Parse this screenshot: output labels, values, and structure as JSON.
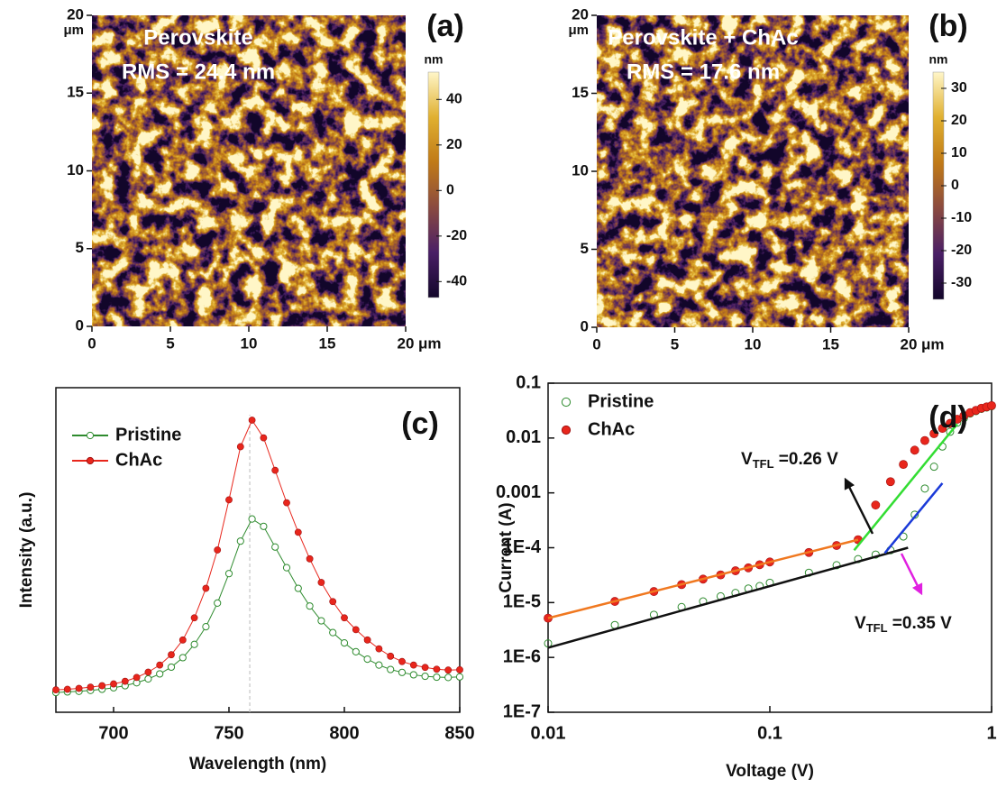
{
  "chart_data": [
    {
      "type": "afm_image",
      "label": "(a)",
      "title": "Perovskite",
      "subtitle": "RMS = 24.4 nm",
      "xlim": [
        0,
        20
      ],
      "ylim": [
        0,
        20
      ],
      "xticks": [
        0,
        5,
        10,
        15,
        20
      ],
      "yticks": [
        0,
        5,
        10,
        15,
        20
      ],
      "unit": "μm",
      "colorbar_label": "nm",
      "zlim": [
        -47,
        52
      ],
      "zticks": [
        -40,
        -20,
        0,
        20,
        40
      ],
      "colors": [
        "#12062a",
        "#4a1f66",
        "#8a4a40",
        "#c07a18",
        "#e0b030",
        "#fff6c8"
      ]
    },
    {
      "type": "afm_image",
      "label": "(b)",
      "title": "Perovskite + ChAc",
      "subtitle": "RMS = 17.6 nm",
      "xlim": [
        0,
        20
      ],
      "ylim": [
        0,
        20
      ],
      "xticks": [
        0,
        5,
        10,
        15,
        20
      ],
      "yticks": [
        0,
        5,
        10,
        15,
        20
      ],
      "unit": "μm",
      "colorbar_label": "nm",
      "zlim": [
        -35,
        35
      ],
      "zticks": [
        -30,
        -20,
        -10,
        0,
        10,
        20,
        30
      ],
      "colors": [
        "#12062a",
        "#4a1f66",
        "#8a4a40",
        "#c07a18",
        "#e0b030",
        "#fff6c8"
      ]
    },
    {
      "type": "line",
      "label": "(c)",
      "xlabel": "Wavelength (nm)",
      "ylabel": "Intensity (a.u.)",
      "xlim": [
        675,
        850
      ],
      "ylim": [
        0,
        1.1
      ],
      "xticks": [
        700,
        750,
        800,
        850
      ],
      "legend": "upper left",
      "reference_line_x": 759,
      "x": [
        675,
        680,
        685,
        690,
        695,
        700,
        705,
        710,
        715,
        720,
        725,
        730,
        735,
        740,
        745,
        750,
        755,
        760,
        765,
        770,
        775,
        780,
        785,
        790,
        795,
        800,
        805,
        810,
        815,
        820,
        825,
        830,
        835,
        840,
        845,
        850
      ],
      "series": [
        {
          "name": "Pristine",
          "color": "#2e8b2e",
          "marker": "open",
          "values": [
            0.067,
            0.069,
            0.071,
            0.074,
            0.078,
            0.083,
            0.09,
            0.1,
            0.113,
            0.13,
            0.153,
            0.185,
            0.23,
            0.29,
            0.37,
            0.47,
            0.58,
            0.655,
            0.63,
            0.56,
            0.49,
            0.42,
            0.36,
            0.31,
            0.27,
            0.235,
            0.205,
            0.18,
            0.16,
            0.145,
            0.135,
            0.127,
            0.122,
            0.119,
            0.118,
            0.12
          ]
        },
        {
          "name": "ChAc",
          "color": "#e8261c",
          "marker": "filled",
          "values": [
            0.076,
            0.078,
            0.081,
            0.085,
            0.09,
            0.096,
            0.105,
            0.118,
            0.136,
            0.16,
            0.195,
            0.245,
            0.32,
            0.42,
            0.55,
            0.72,
            0.9,
            0.99,
            0.93,
            0.82,
            0.71,
            0.61,
            0.52,
            0.44,
            0.375,
            0.32,
            0.28,
            0.245,
            0.215,
            0.19,
            0.172,
            0.16,
            0.152,
            0.146,
            0.143,
            0.144
          ]
        }
      ]
    },
    {
      "type": "loglog",
      "label": "(d)",
      "xlabel": "Voltage (V)",
      "ylabel": "Current (A)",
      "xlim": [
        0.01,
        1
      ],
      "ylim": [
        1e-07,
        0.1
      ],
      "xticks": [
        0.01,
        0.1,
        1
      ],
      "yticks": [
        {
          "value": 1e-07,
          "label": "1E-7"
        },
        {
          "value": 1e-06,
          "label": "1E-6"
        },
        {
          "value": 1e-05,
          "label": "1E-5"
        },
        {
          "value": 0.0001,
          "label": "1E-4"
        },
        0.001,
        0.01,
        0.1
      ],
      "legend": "upper left",
      "x": [
        0.01,
        0.02,
        0.03,
        0.04,
        0.05,
        0.06,
        0.07,
        0.08,
        0.09,
        0.1,
        0.15,
        0.2,
        0.25,
        0.3,
        0.35,
        0.4,
        0.45,
        0.5,
        0.55,
        0.6,
        0.65,
        0.7,
        0.75,
        0.8,
        0.85,
        0.9,
        0.95,
        1.0
      ],
      "series": [
        {
          "name": "Pristine",
          "color": "#2e8b2e",
          "marker": "open",
          "values": [
            1.8e-06,
            3.9e-06,
            6e-06,
            8.3e-06,
            1.05e-05,
            1.3e-05,
            1.5e-05,
            1.8e-05,
            2e-05,
            2.3e-05,
            3.5e-05,
            4.8e-05,
            6.2e-05,
            7.5e-05,
            9e-05,
            0.00016,
            0.0004,
            0.0012,
            0.003,
            0.007,
            0.013,
            0.019,
            0.023,
            0.028,
            0.031,
            0.034,
            0.036,
            0.038
          ]
        },
        {
          "name": "ChAc",
          "color": "#e8261c",
          "marker": "filled",
          "values": [
            5.2e-06,
            1.05e-05,
            1.59e-05,
            2.13e-05,
            2.68e-05,
            3.2e-05,
            3.8e-05,
            4.3e-05,
            4.9e-05,
            5.5e-05,
            8.2e-05,
            0.00011,
            0.00014,
            0.0006,
            0.0016,
            0.0033,
            0.006,
            0.009,
            0.012,
            0.015,
            0.0185,
            0.022,
            0.0255,
            0.029,
            0.032,
            0.035,
            0.037,
            0.039
          ]
        }
      ],
      "fits": [
        {
          "color": "#f07820",
          "x": [
            0.01,
            0.25
          ],
          "values": [
            5.2e-06,
            0.00014
          ]
        },
        {
          "color": "#111111",
          "x": [
            0.01,
            0.42
          ],
          "values": [
            1.5e-06,
            0.0001
          ]
        },
        {
          "color": "#33dd33",
          "x": [
            0.24,
            0.7
          ],
          "values": [
            9e-05,
            0.018
          ]
        },
        {
          "color": "#1a3ad8",
          "x": [
            0.33,
            0.6
          ],
          "values": [
            8e-05,
            0.0015
          ]
        }
      ],
      "annotations": [
        {
          "text": "V",
          "subscript": "TFL",
          "suffix": " =0.26 V",
          "arrow_color": "#111111"
        },
        {
          "text": "V",
          "subscript": "TFL",
          "suffix": " =0.35 V",
          "arrow_color": "#e020e0"
        }
      ]
    }
  ]
}
